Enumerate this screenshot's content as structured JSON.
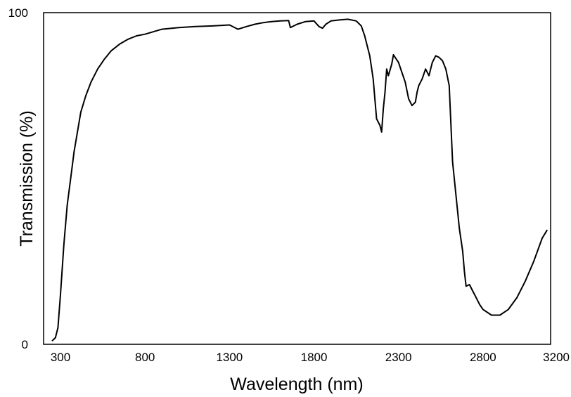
{
  "chart_data": {
    "type": "line",
    "title": "",
    "xlabel": "Wavelength  (nm)",
    "ylabel": "Transmission (%)",
    "xlim": [
      200,
      3200
    ],
    "ylim": [
      0,
      100
    ],
    "x_ticks": [
      300,
      800,
      1300,
      1800,
      2300,
      2800,
      3200
    ],
    "y_ticks": [
      0,
      100
    ],
    "grid": false,
    "legend": "none",
    "line_color": "#000000",
    "series": [
      {
        "name": "",
        "x": [
          250,
          270,
          285,
          300,
          320,
          340,
          360,
          380,
          400,
          420,
          450,
          480,
          520,
          560,
          600,
          650,
          700,
          750,
          800,
          900,
          1000,
          1100,
          1200,
          1300,
          1350,
          1400,
          1450,
          1500,
          1550,
          1600,
          1650,
          1660,
          1680,
          1700,
          1750,
          1800,
          1830,
          1850,
          1870,
          1900,
          1950,
          2000,
          2050,
          2080,
          2100,
          2130,
          2150,
          2170,
          2190,
          2200,
          2210,
          2220,
          2230,
          2240,
          2260,
          2270,
          2280,
          2300,
          2320,
          2340,
          2360,
          2380,
          2400,
          2410,
          2420,
          2440,
          2460,
          2480,
          2500,
          2520,
          2540,
          2560,
          2580,
          2600,
          2620,
          2640,
          2660,
          2680,
          2690,
          2700,
          2720,
          2740,
          2760,
          2780,
          2800,
          2850,
          2900,
          2950,
          3000,
          3050,
          3100,
          3150,
          3180
        ],
        "y": [
          1,
          2,
          5,
          15,
          30,
          42,
          50,
          58,
          64,
          70,
          75,
          79,
          83,
          86,
          88.5,
          90.5,
          92,
          93,
          93.5,
          95,
          95.5,
          95.8,
          96,
          96.3,
          95,
          95.8,
          96.5,
          97,
          97.3,
          97.5,
          97.6,
          95.5,
          96,
          96.5,
          97.3,
          97.5,
          95.8,
          95.3,
          96.5,
          97.5,
          97.8,
          98,
          97.5,
          96,
          93,
          87,
          80,
          68,
          66,
          64,
          71,
          76,
          83,
          81,
          84.5,
          87.3,
          86.5,
          85,
          82,
          79,
          74,
          72,
          73,
          76,
          78,
          80,
          83,
          81,
          85,
          87,
          86.5,
          85.5,
          83,
          78,
          55,
          45,
          35,
          28,
          22,
          17.5,
          18,
          16,
          14,
          12,
          10.5,
          8.8,
          8.8,
          10.5,
          14,
          19,
          25,
          32,
          34.5
        ]
      }
    ]
  }
}
